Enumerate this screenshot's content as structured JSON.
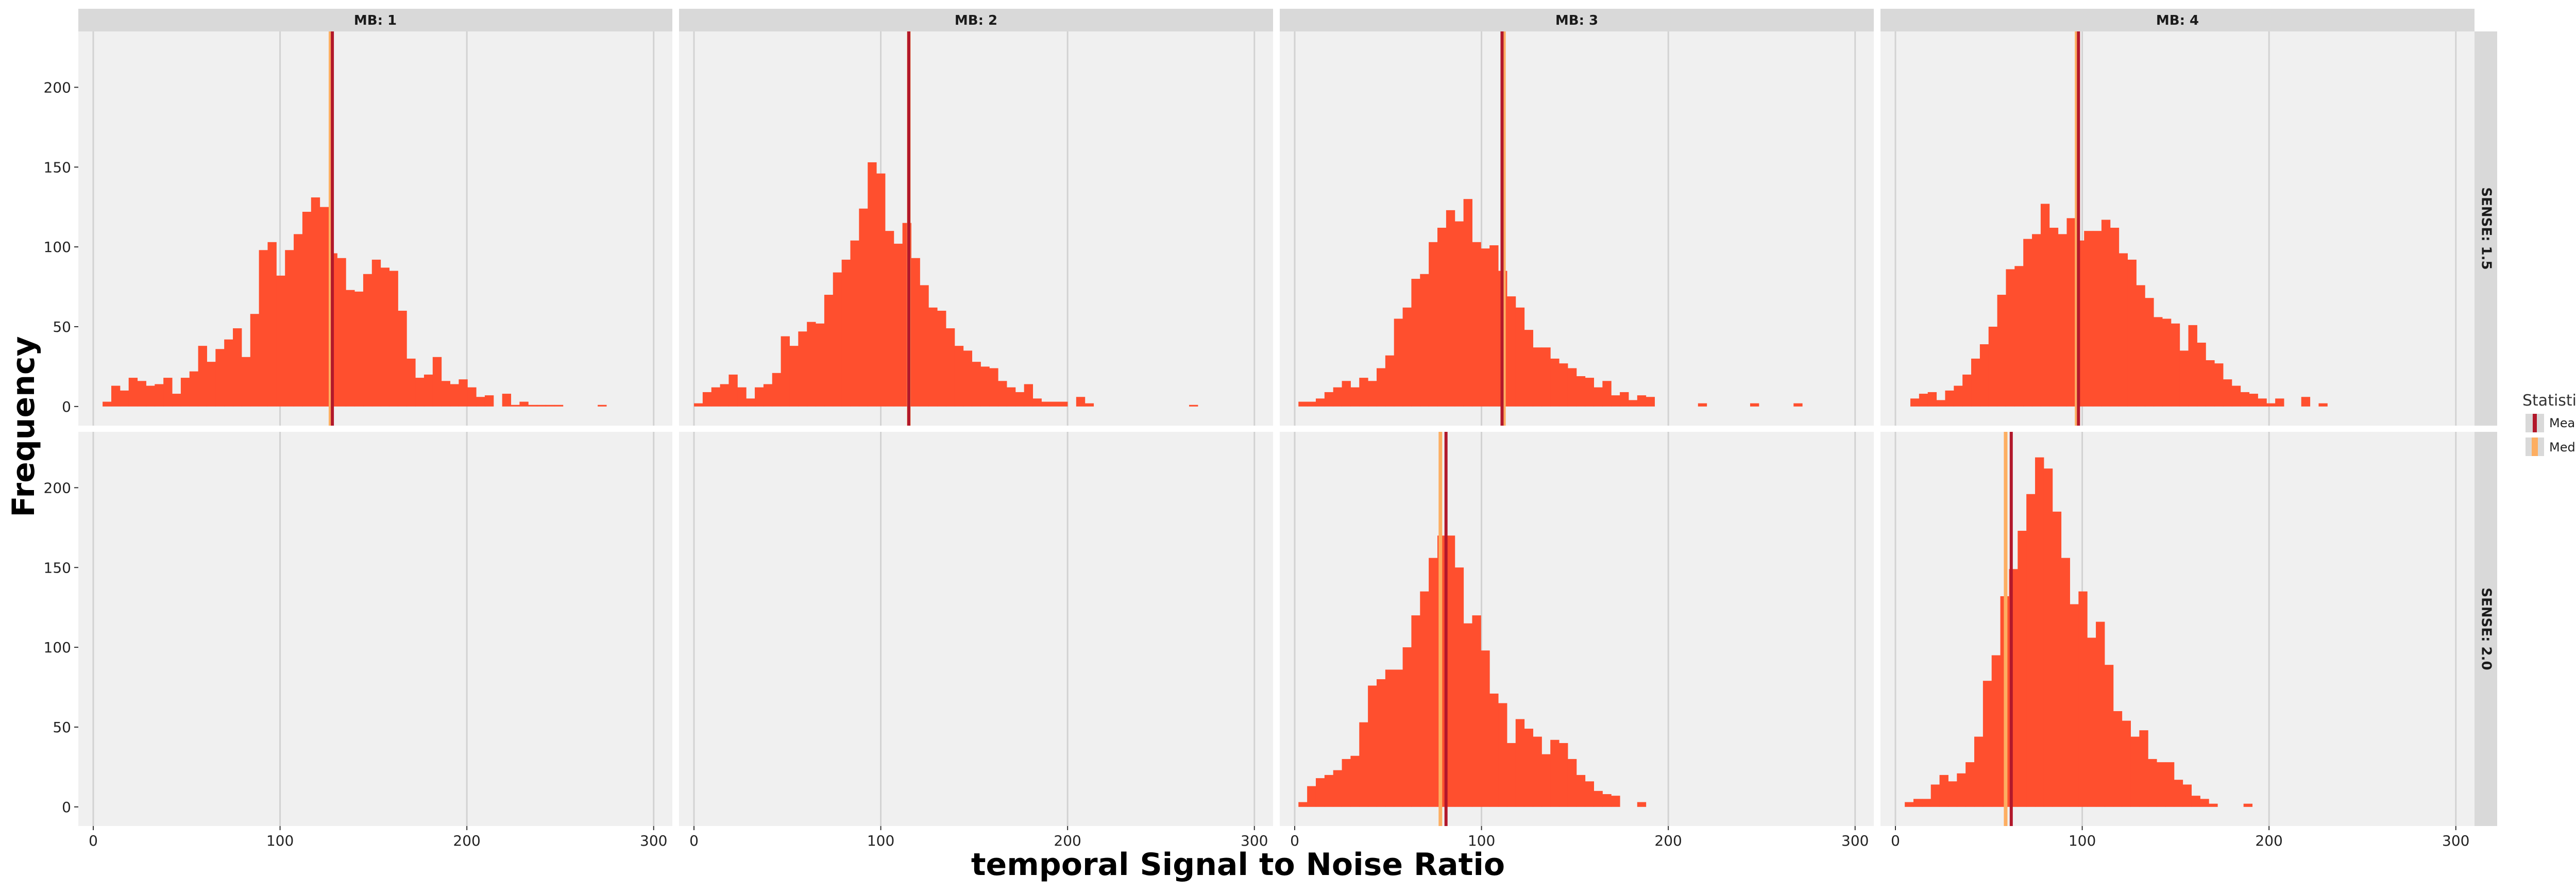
{
  "chart_data": {
    "type": "bar",
    "subtype": "faceted histogram",
    "xlabel": "temporal Signal to Noise Ratio",
    "ylabel": "Frequency",
    "xlim": [
      -8,
      310
    ],
    "ylim": [
      -12,
      235
    ],
    "x_ticks": [
      0,
      100,
      200,
      300
    ],
    "y_ticks": [
      0,
      50,
      100,
      150,
      200
    ],
    "bin_width": 4.65,
    "grid": true,
    "colors": {
      "bars": "#ff4f2e",
      "mean": "#b2182b",
      "median": "#fdae61",
      "panel_background": "#f0f0f0",
      "strip_background": "#d9d9d9"
    },
    "column_facets": [
      "MB: 1",
      "MB: 2",
      "MB: 3",
      "MB: 4"
    ],
    "row_facets": [
      "SENSE: 1.5",
      "SENSE: 2.0"
    ],
    "legend": {
      "title": "Statistic",
      "placement": "right",
      "entries": [
        {
          "label": "Mean",
          "color": "#b2182b"
        },
        {
          "label": "Median",
          "color": "#fdae61"
        }
      ]
    },
    "panels": [
      {
        "col": "MB: 1",
        "row": "SENSE: 1.5",
        "bin_start": 5,
        "mean": 128,
        "median": 127,
        "counts": [
          3,
          13,
          10,
          18,
          16,
          13,
          14,
          18,
          8,
          18,
          22,
          38,
          28,
          36,
          42,
          49,
          31,
          58,
          98,
          103,
          82,
          98,
          108,
          122,
          131,
          125,
          96,
          93,
          73,
          72,
          83,
          92,
          87,
          85,
          60,
          30,
          18,
          20,
          31,
          16,
          14,
          17,
          12,
          6,
          7,
          0,
          8,
          1,
          3,
          1,
          1,
          1,
          1,
          0,
          0,
          0,
          0,
          1
        ]
      },
      {
        "col": "MB: 2",
        "row": "SENSE: 1.5",
        "bin_start": 0,
        "mean": 115,
        "median": 115,
        "counts": [
          2,
          9,
          12,
          14,
          20,
          12,
          5,
          12,
          14,
          21,
          44,
          38,
          47,
          53,
          52,
          70,
          84,
          92,
          104,
          124,
          153,
          146,
          110,
          102,
          115,
          93,
          76,
          62,
          60,
          49,
          38,
          35,
          28,
          25,
          24,
          16,
          12,
          9,
          14,
          5,
          3,
          3,
          3,
          0,
          6,
          2,
          0,
          0,
          0,
          0,
          0,
          0,
          0,
          0,
          0,
          0,
          0,
          1
        ]
      },
      {
        "col": "MB: 3",
        "row": "SENSE: 1.5",
        "bin_start": 2,
        "mean": 111,
        "median": 112,
        "counts": [
          3,
          3,
          5,
          9,
          12,
          16,
          12,
          18,
          16,
          24,
          32,
          55,
          62,
          80,
          83,
          103,
          112,
          123,
          116,
          130,
          103,
          99,
          101,
          85,
          69,
          62,
          48,
          37,
          37,
          30,
          27,
          24,
          19,
          18,
          12,
          16,
          7,
          9,
          4,
          7,
          6,
          0,
          0,
          0,
          0,
          0,
          2,
          0,
          0,
          0,
          0,
          0,
          2,
          0,
          0,
          0,
          0,
          2
        ]
      },
      {
        "col": "MB: 4",
        "row": "SENSE: 1.5",
        "bin_start": 8,
        "mean": 98,
        "median": 97,
        "counts": [
          5,
          8,
          9,
          4,
          10,
          13,
          20,
          30,
          39,
          50,
          70,
          86,
          88,
          105,
          108,
          127,
          112,
          108,
          118,
          104,
          110,
          110,
          117,
          112,
          96,
          92,
          76,
          68,
          56,
          55,
          52,
          35,
          51,
          40,
          29,
          27,
          17,
          13,
          9,
          8,
          5,
          2,
          5,
          0,
          0,
          6,
          0,
          2
        ]
      },
      {
        "col": "MB: 1",
        "row": "SENSE: 2.0",
        "bin_start": null,
        "mean": null,
        "median": null,
        "counts": []
      },
      {
        "col": "MB: 2",
        "row": "SENSE: 2.0",
        "bin_start": null,
        "mean": null,
        "median": null,
        "counts": []
      },
      {
        "col": "MB: 3",
        "row": "SENSE: 2.0",
        "bin_start": 2,
        "mean": 81,
        "median": 78,
        "counts": [
          3,
          13,
          18,
          20,
          23,
          30,
          32,
          53,
          76,
          80,
          86,
          86,
          100,
          120,
          135,
          156,
          170,
          170,
          150,
          115,
          120,
          98,
          71,
          65,
          40,
          55,
          49,
          44,
          33,
          42,
          40,
          30,
          20,
          16,
          10,
          8,
          7,
          0,
          0,
          3,
          0,
          0
        ]
      },
      {
        "col": "MB: 4",
        "row": "SENSE: 2.0",
        "bin_start": 5,
        "mean": 62,
        "median": 59,
        "counts": [
          3,
          5,
          5,
          14,
          20,
          16,
          21,
          28,
          44,
          79,
          95,
          132,
          149,
          173,
          196,
          219,
          212,
          185,
          156,
          127,
          135,
          106,
          116,
          89,
          60,
          54,
          44,
          48,
          30,
          28,
          28,
          17,
          14,
          7,
          5,
          2,
          0,
          0,
          0,
          2
        ]
      }
    ]
  }
}
